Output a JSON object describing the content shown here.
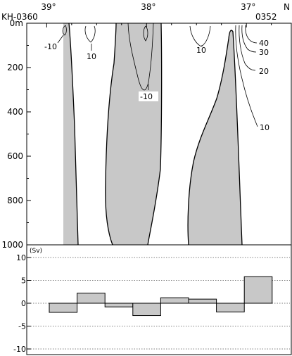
{
  "section": {
    "station_start": "KH-0360",
    "station_end": "0352",
    "north_label": "N",
    "lat_labels": [
      "39°",
      "38°",
      "37°"
    ],
    "depth_ticks": [
      "0m",
      "200",
      "400",
      "600",
      "800",
      "1000"
    ],
    "contour_labels": [
      "-10",
      "10",
      "-10",
      "10",
      "10",
      "20",
      "30",
      "40"
    ],
    "fill_color": "#c8c8c8"
  },
  "transport": {
    "unit": "(Sv)",
    "ticks": [
      "10",
      "5",
      "0",
      "-5",
      "-10"
    ]
  },
  "chart_data": [
    {
      "type": "area",
      "x_name": "latitude",
      "y_name": "depth",
      "xlim": [
        39.2,
        36.55
      ],
      "ylim": [
        1000,
        0
      ],
      "x_ticks": [
        39,
        38,
        37
      ],
      "y_ticks": [
        0,
        200,
        400,
        600,
        800,
        1000
      ],
      "grid": false
    },
    {
      "type": "bar",
      "ylabel": "(Sv)",
      "ylim": [
        -10,
        10
      ],
      "y_ticks": [
        10,
        5,
        0,
        -5,
        -10
      ],
      "grid": "dotted horizontal",
      "values": [
        -2.0,
        2.2,
        -0.8,
        -2.7,
        1.2,
        0.9,
        -1.9,
        5.8
      ]
    }
  ]
}
